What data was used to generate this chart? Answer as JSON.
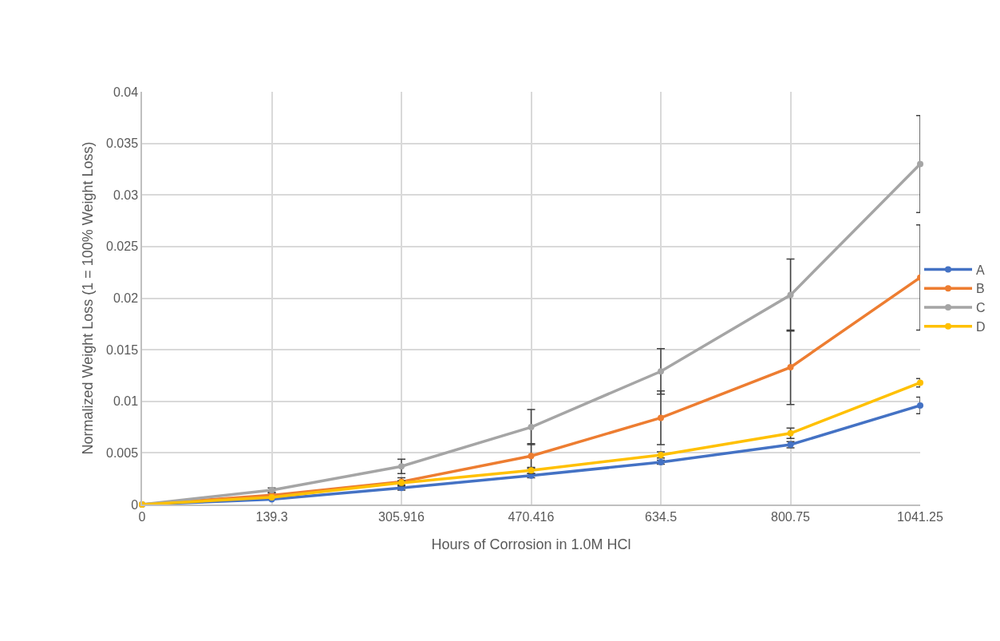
{
  "chart_data": {
    "type": "line",
    "xlabel": "Hours of Corrosion in 1.0M HCl",
    "ylabel": "Normalized Weight Loss (1 = 100% Weight Loss)",
    "categories": [
      "0",
      "139.3",
      "305.916",
      "470.416",
      "634.5",
      "800.75",
      "1041.25"
    ],
    "ylim": [
      0,
      0.04
    ],
    "yticks": [
      0,
      0.005,
      0.01,
      0.015,
      0.02,
      0.025,
      0.03,
      0.035,
      0.04
    ],
    "grid": true,
    "legend": "right",
    "marker": "circle",
    "line_style": "solid",
    "series": [
      {
        "name": "A",
        "color": "#4472c4",
        "values": [
          0,
          0.0005,
          0.0016,
          0.0028,
          0.0041,
          0.0058,
          0.0096
        ],
        "errors": [
          null,
          null,
          0.0002,
          0.0002,
          0.0002,
          0.0003,
          0.0008
        ]
      },
      {
        "name": "B",
        "color": "#ed7d31",
        "values": [
          0,
          0.0009,
          0.0022,
          0.0047,
          0.0084,
          0.0133,
          0.022
        ],
        "errors": [
          null,
          0.0002,
          0.0004,
          0.0012,
          0.0026,
          0.0036,
          0.0051
        ]
      },
      {
        "name": "C",
        "color": "#a5a5a5",
        "values": [
          0,
          0.0014,
          0.0037,
          0.0075,
          0.0129,
          0.0203,
          0.033
        ],
        "errors": [
          null,
          0.0002,
          0.0007,
          0.0017,
          0.0022,
          0.0035,
          0.0047
        ]
      },
      {
        "name": "D",
        "color": "#ffc000",
        "values": [
          0,
          0.0007,
          0.0021,
          0.0033,
          0.0048,
          0.0069,
          0.0118
        ],
        "errors": [
          null,
          null,
          0.0002,
          0.0003,
          0.0003,
          0.0005,
          0.0004
        ]
      }
    ]
  }
}
